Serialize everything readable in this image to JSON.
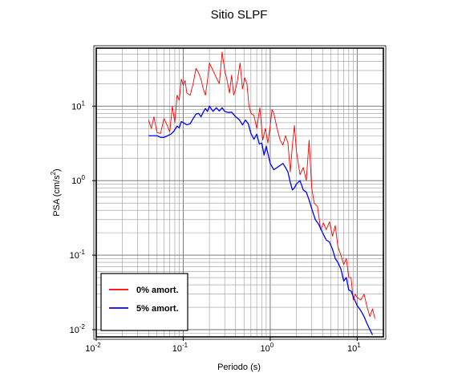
{
  "chart_data": {
    "type": "line",
    "title": "Sitio SLPF",
    "xlabel": "Periodo (s)",
    "ylabel_main": "PSA (cm/s",
    "ylabel_sup": "2",
    "ylabel_close": ")",
    "x_scale": "log",
    "y_scale": "log",
    "xlim": [
      0.01,
      20
    ],
    "ylim": [
      0.008,
      60
    ],
    "grid": true,
    "legend_position": "bottom-left",
    "x_ticks": [
      {
        "base": "10",
        "exp": "-2",
        "value": 0.01
      },
      {
        "base": "10",
        "exp": "-1",
        "value": 0.1
      },
      {
        "base": "10",
        "exp": "0",
        "value": 1
      },
      {
        "base": "10",
        "exp": "1",
        "value": 10
      }
    ],
    "y_ticks": [
      {
        "base": "10",
        "exp": "-2",
        "value": 0.01
      },
      {
        "base": "10",
        "exp": "-1",
        "value": 0.1
      },
      {
        "base": "10",
        "exp": "0",
        "value": 1
      },
      {
        "base": "10",
        "exp": "1",
        "value": 10
      }
    ],
    "series": [
      {
        "name": "0% amort.",
        "color": "#ff0000",
        "points": [
          [
            0.04,
            6.5
          ],
          [
            0.043,
            5.0
          ],
          [
            0.046,
            7.2
          ],
          [
            0.05,
            4.4
          ],
          [
            0.055,
            4.3
          ],
          [
            0.06,
            6.8
          ],
          [
            0.066,
            5.4
          ],
          [
            0.07,
            4.5
          ],
          [
            0.075,
            10.0
          ],
          [
            0.08,
            6.0
          ],
          [
            0.085,
            14.0
          ],
          [
            0.09,
            12.0
          ],
          [
            0.095,
            23.0
          ],
          [
            0.1,
            19.0
          ],
          [
            0.105,
            22.0
          ],
          [
            0.11,
            15.0
          ],
          [
            0.12,
            14.0
          ],
          [
            0.13,
            20.0
          ],
          [
            0.14,
            32.0
          ],
          [
            0.15,
            28.0
          ],
          [
            0.16,
            23.0
          ],
          [
            0.17,
            17.0
          ],
          [
            0.18,
            14.0
          ],
          [
            0.19,
            22.0
          ],
          [
            0.2,
            38.0
          ],
          [
            0.22,
            30.0
          ],
          [
            0.24,
            24.0
          ],
          [
            0.26,
            20.0
          ],
          [
            0.28,
            53.0
          ],
          [
            0.3,
            30.0
          ],
          [
            0.32,
            22.0
          ],
          [
            0.34,
            15.0
          ],
          [
            0.36,
            26.0
          ],
          [
            0.38,
            14.0
          ],
          [
            0.4,
            17.0
          ],
          [
            0.42,
            22.0
          ],
          [
            0.45,
            38.0
          ],
          [
            0.48,
            17.0
          ],
          [
            0.51,
            24.0
          ],
          [
            0.54,
            20.0
          ],
          [
            0.57,
            10.0
          ],
          [
            0.6,
            8.0
          ],
          [
            0.65,
            7.5
          ],
          [
            0.7,
            5.0
          ],
          [
            0.76,
            9.5
          ],
          [
            0.82,
            3.5
          ],
          [
            0.88,
            5.0
          ],
          [
            0.94,
            3.2
          ],
          [
            1.0,
            5.5
          ],
          [
            1.05,
            9.0
          ],
          [
            1.1,
            8.0
          ],
          [
            1.2,
            5.0
          ],
          [
            1.3,
            3.5
          ],
          [
            1.4,
            3.0
          ],
          [
            1.5,
            4.0
          ],
          [
            1.6,
            3.2
          ],
          [
            1.7,
            1.3
          ],
          [
            1.8,
            3.0
          ],
          [
            1.9,
            5.5
          ],
          [
            2.0,
            2.5
          ],
          [
            2.2,
            1.2
          ],
          [
            2.4,
            1.5
          ],
          [
            2.6,
            1.0
          ],
          [
            2.8,
            3.5
          ],
          [
            3.0,
            0.8
          ],
          [
            3.2,
            0.5
          ],
          [
            3.5,
            0.45
          ],
          [
            3.8,
            0.22
          ],
          [
            4.1,
            0.27
          ],
          [
            4.4,
            0.22
          ],
          [
            4.8,
            0.28
          ],
          [
            5.2,
            0.18
          ],
          [
            5.6,
            0.25
          ],
          [
            6.0,
            0.13
          ],
          [
            6.5,
            0.1
          ],
          [
            7.0,
            0.075
          ],
          [
            7.5,
            0.09
          ],
          [
            8.0,
            0.05
          ],
          [
            8.5,
            0.05
          ],
          [
            9.0,
            0.025
          ],
          [
            9.5,
            0.03
          ],
          [
            10.0,
            0.027
          ],
          [
            11.0,
            0.025
          ],
          [
            12.0,
            0.03
          ],
          [
            13.0,
            0.02
          ],
          [
            14.0,
            0.015
          ],
          [
            15.0,
            0.019
          ],
          [
            16.0,
            0.014
          ]
        ]
      },
      {
        "name": "5% amort.",
        "color": "#0000ff",
        "points": [
          [
            0.04,
            4.0
          ],
          [
            0.045,
            4.0
          ],
          [
            0.05,
            4.0
          ],
          [
            0.055,
            3.8
          ],
          [
            0.06,
            3.8
          ],
          [
            0.066,
            4.0
          ],
          [
            0.072,
            4.2
          ],
          [
            0.078,
            4.6
          ],
          [
            0.085,
            5.4
          ],
          [
            0.09,
            5.1
          ],
          [
            0.095,
            6.2
          ],
          [
            0.1,
            6.0
          ],
          [
            0.11,
            5.6
          ],
          [
            0.12,
            5.8
          ],
          [
            0.13,
            6.8
          ],
          [
            0.14,
            7.8
          ],
          [
            0.15,
            8.0
          ],
          [
            0.16,
            7.2
          ],
          [
            0.17,
            8.3
          ],
          [
            0.18,
            9.3
          ],
          [
            0.19,
            8.5
          ],
          [
            0.2,
            10.0
          ],
          [
            0.22,
            8.5
          ],
          [
            0.24,
            9.5
          ],
          [
            0.26,
            8.6
          ],
          [
            0.28,
            9.5
          ],
          [
            0.3,
            8.5
          ],
          [
            0.33,
            8.2
          ],
          [
            0.36,
            8.3
          ],
          [
            0.4,
            7.2
          ],
          [
            0.44,
            6.6
          ],
          [
            0.48,
            5.6
          ],
          [
            0.52,
            6.5
          ],
          [
            0.56,
            5.8
          ],
          [
            0.6,
            4.3
          ],
          [
            0.65,
            3.6
          ],
          [
            0.7,
            4.2
          ],
          [
            0.75,
            3.1
          ],
          [
            0.8,
            3.2
          ],
          [
            0.85,
            2.2
          ],
          [
            0.9,
            2.9
          ],
          [
            0.95,
            2.2
          ],
          [
            1.0,
            1.7
          ],
          [
            1.1,
            1.4
          ],
          [
            1.2,
            1.5
          ],
          [
            1.3,
            1.6
          ],
          [
            1.4,
            1.7
          ],
          [
            1.5,
            1.5
          ],
          [
            1.6,
            1.3
          ],
          [
            1.7,
            0.95
          ],
          [
            1.8,
            0.75
          ],
          [
            1.9,
            0.8
          ],
          [
            2.0,
            0.9
          ],
          [
            2.2,
            1.0
          ],
          [
            2.4,
            0.75
          ],
          [
            2.6,
            0.7
          ],
          [
            2.8,
            0.55
          ],
          [
            3.0,
            0.42
          ],
          [
            3.3,
            0.3
          ],
          [
            3.6,
            0.26
          ],
          [
            4.0,
            0.2
          ],
          [
            4.4,
            0.16
          ],
          [
            4.8,
            0.15
          ],
          [
            5.2,
            0.12
          ],
          [
            5.6,
            0.09
          ],
          [
            6.0,
            0.08
          ],
          [
            6.5,
            0.065
          ],
          [
            7.0,
            0.045
          ],
          [
            7.5,
            0.05
          ],
          [
            8.0,
            0.034
          ],
          [
            8.5,
            0.033
          ],
          [
            9.0,
            0.028
          ],
          [
            9.5,
            0.024
          ],
          [
            10.0,
            0.021
          ],
          [
            11.0,
            0.018
          ],
          [
            12.0,
            0.015
          ],
          [
            13.0,
            0.012
          ],
          [
            14.0,
            0.01
          ],
          [
            15.0,
            0.0085
          ]
        ]
      }
    ]
  }
}
